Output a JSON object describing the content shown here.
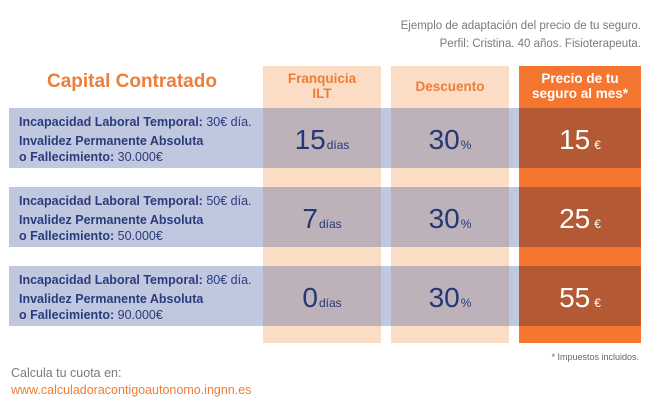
{
  "header_note": {
    "line1": "Ejemplo de adaptación del precio de tu seguro.",
    "line2": "Perfil: Cristina. 40 años. Fisioterapeuta."
  },
  "table": {
    "title": "Capital Contratado",
    "columns": {
      "franquicia_line1": "Franquicia",
      "franquicia_line2": "ILT",
      "descuento": "Descuento",
      "precio_line1": "Precio de tu",
      "precio_line2": "seguro al mes*"
    },
    "rows": [
      {
        "ilt_label": "Incapacidad Laboral Temporal:",
        "ilt_value": " 30€ día.",
        "ipa_line1": "Invalidez Permanente Absoluta",
        "ipa_label": "o Fallecimiento:",
        "ipa_value": " 30.000€",
        "franquicia_num": "15",
        "franquicia_unit": "días",
        "descuento_num": "30",
        "descuento_unit": "%",
        "precio_num": "15",
        "precio_unit": "€"
      },
      {
        "ilt_label": "Incapacidad Laboral Temporal:",
        "ilt_value": " 50€ día.",
        "ipa_line1": "Invalidez Permanente Absoluta",
        "ipa_label": "o Fallecimiento:",
        "ipa_value": " 50.000€",
        "franquicia_num": "7",
        "franquicia_unit": "días",
        "descuento_num": "30",
        "descuento_unit": "%",
        "precio_num": "25",
        "precio_unit": "€"
      },
      {
        "ilt_label": "Incapacidad Laboral Temporal:",
        "ilt_value": " 80€ día.",
        "ipa_line1": "Invalidez Permanente Absoluta",
        "ipa_label": "o Fallecimiento:",
        "ipa_value": " 90.000€",
        "franquicia_num": "0",
        "franquicia_unit": "días",
        "descuento_num": "30",
        "descuento_unit": "%",
        "precio_num": "55",
        "precio_unit": "€"
      }
    ]
  },
  "tax_note": "* Impuestos incluidos.",
  "footer": {
    "line1": "Calcula tu cuota en:",
    "url": "www.calculadoracontigoautonomo.ingnn.es"
  },
  "colors": {
    "orange_accent": "#ee7d3a",
    "price_column": "#f4762f",
    "light_column": "#fbdcc4",
    "row_band": "#a9b3d2",
    "dark_text": "#263776"
  }
}
